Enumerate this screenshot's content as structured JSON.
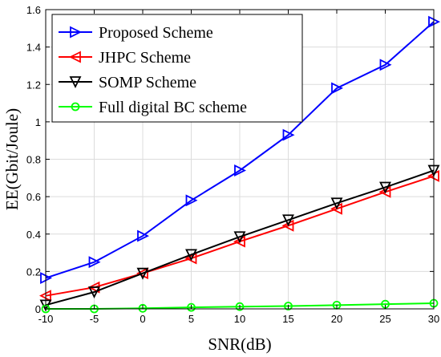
{
  "chart_data": {
    "type": "line",
    "xlabel": "SNR(dB)",
    "ylabel": "EE(Gbit/Joule)",
    "xlim": [
      -10,
      30
    ],
    "ylim": [
      0,
      1.6
    ],
    "x_ticks": [
      "-10",
      "-5",
      "0",
      "5",
      "10",
      "15",
      "20",
      "25",
      "30"
    ],
    "y_ticks": [
      "0",
      "0.2",
      "0.4",
      "0.6",
      "0.8",
      "1",
      "1.2",
      "1.4",
      "1.6"
    ],
    "grid": true,
    "legend_position": "top-left",
    "x": [
      -10,
      -5,
      0,
      5,
      10,
      15,
      20,
      25,
      30
    ],
    "series": [
      {
        "name": "Proposed Scheme",
        "color": "#0000ff",
        "marker": "triangle-right",
        "values": [
          0.165,
          0.25,
          0.39,
          0.58,
          0.74,
          0.93,
          1.18,
          1.305,
          1.535
        ]
      },
      {
        "name": "JHPC Scheme",
        "color": "#ff0000",
        "marker": "triangle-left",
        "values": [
          0.07,
          0.115,
          0.19,
          0.27,
          0.36,
          0.445,
          0.535,
          0.625,
          0.71
        ]
      },
      {
        "name": "SOMP Scheme",
        "color": "#000000",
        "marker": "triangle-down",
        "values": [
          0.02,
          0.09,
          0.19,
          0.29,
          0.385,
          0.475,
          0.565,
          0.65,
          0.74
        ]
      },
      {
        "name": "Full digital BC scheme",
        "color": "#00ff00",
        "marker": "circle",
        "values": [
          0.0,
          0.0,
          0.003,
          0.008,
          0.012,
          0.015,
          0.02,
          0.025,
          0.03
        ]
      }
    ]
  }
}
